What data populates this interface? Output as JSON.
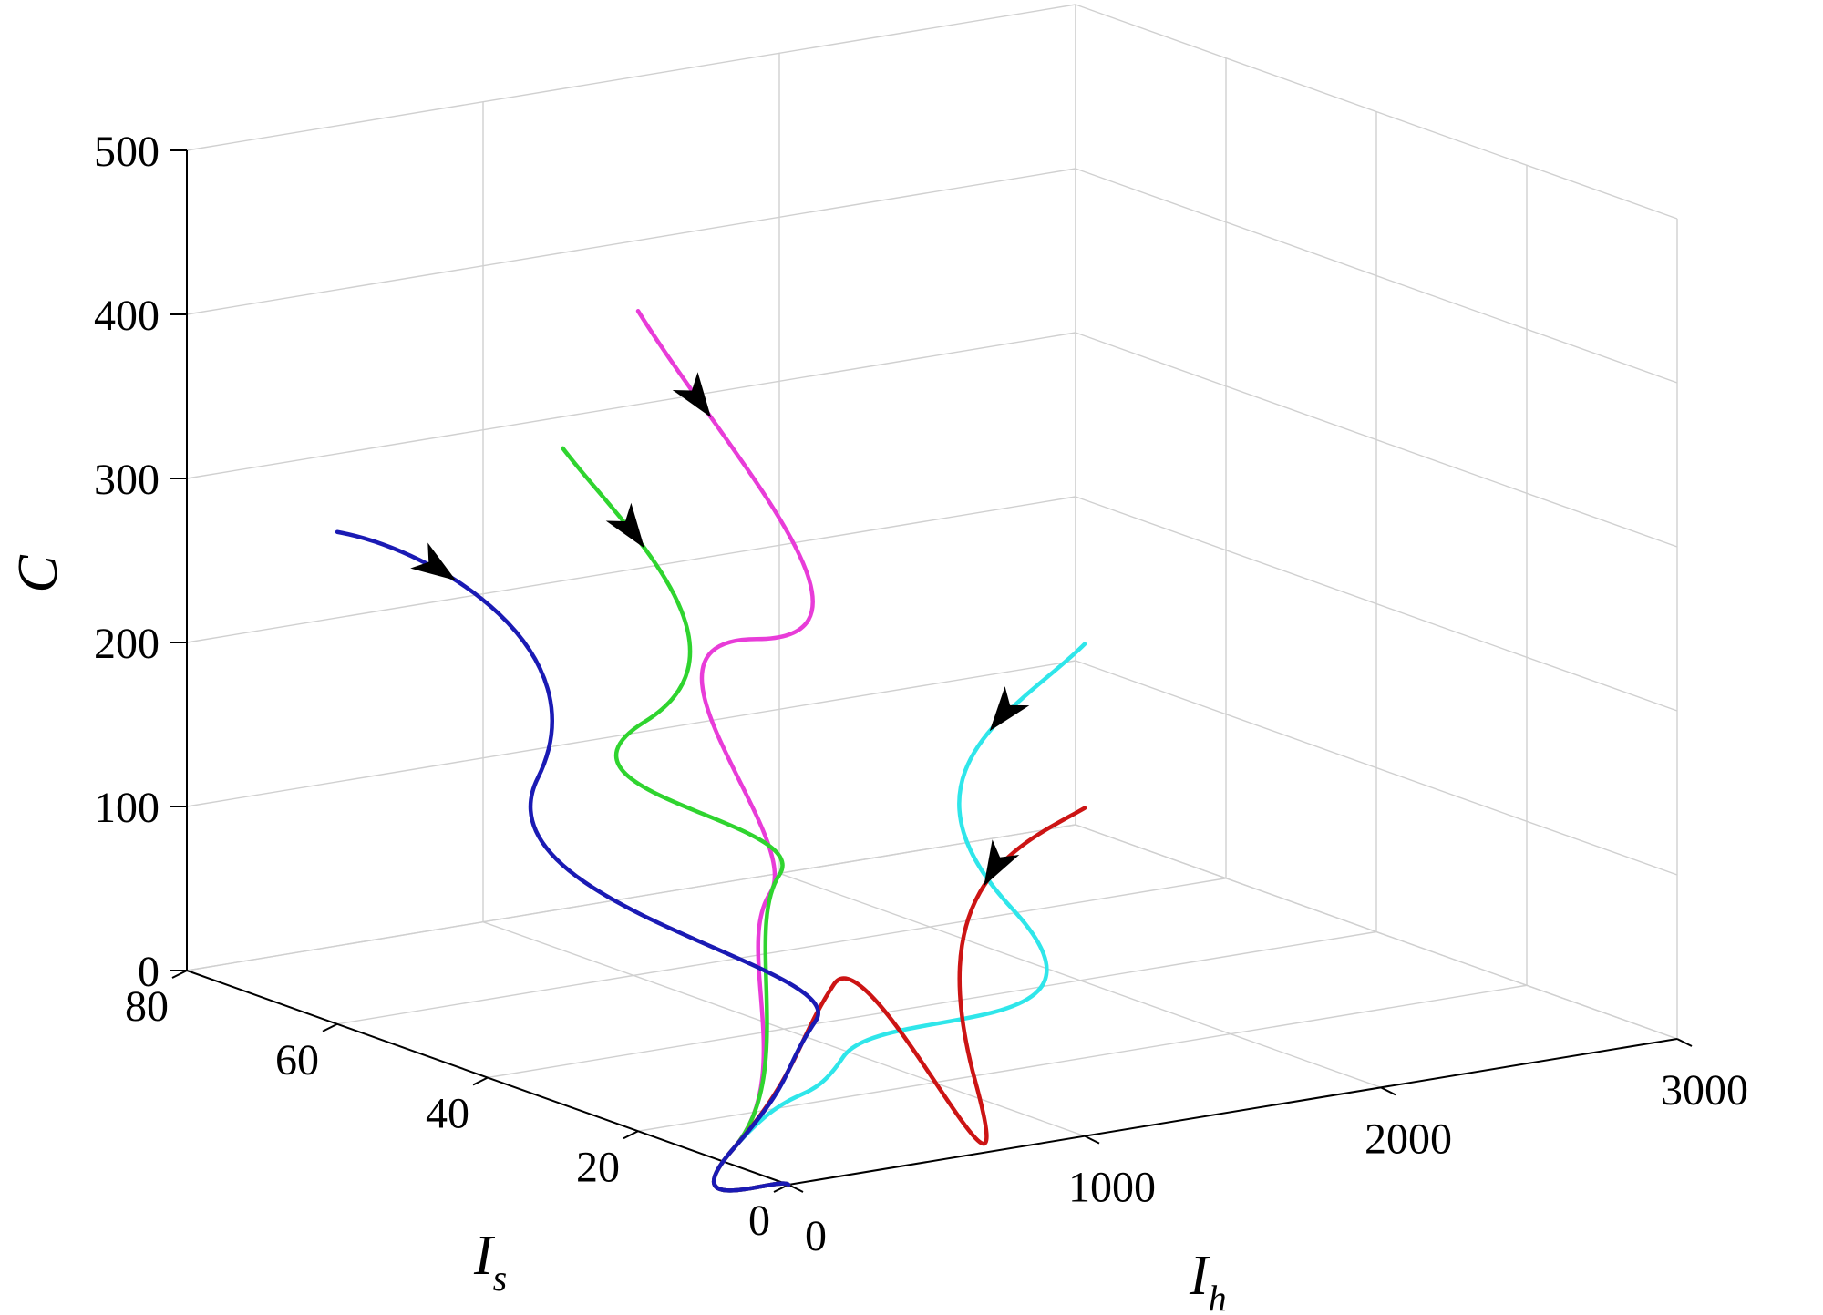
{
  "chart_data": {
    "type": "line3d",
    "title": "",
    "axes": {
      "x": {
        "label": "I",
        "label_sub": "h",
        "ticks": [
          "0",
          "1000",
          "2000",
          "3000"
        ],
        "range": [
          0,
          3000
        ]
      },
      "y": {
        "label": "I",
        "label_sub": "s",
        "ticks": [
          "0",
          "20",
          "40",
          "60",
          "80"
        ],
        "range": [
          0,
          80
        ]
      },
      "z": {
        "label": "C",
        "ticks": [
          "0",
          "100",
          "200",
          "300",
          "400",
          "500"
        ],
        "range": [
          0,
          500
        ]
      }
    },
    "grid": true,
    "colors": {
      "magenta": "#e83cd8",
      "green": "#2fd42f",
      "cyan": "#2fe6ea",
      "red": "#cc1414",
      "blue": "#1a1ab4"
    },
    "series": [
      {
        "color_key": "magenta",
        "start": {
          "Ih": 0,
          "Is": 20,
          "C": 500
        },
        "end": {
          "Ih": 0,
          "Is": 0,
          "C": 0
        }
      },
      {
        "color_key": "green",
        "start": {
          "Ih": 0,
          "Is": 30,
          "C": 400
        },
        "end": {
          "Ih": 0,
          "Is": 0,
          "C": 0
        }
      },
      {
        "color_key": "cyan",
        "start": {
          "Ih": 1000,
          "Is": 0,
          "C": 300
        },
        "end": {
          "Ih": 0,
          "Is": 0,
          "C": 0
        }
      },
      {
        "color_key": "red",
        "start": {
          "Ih": 1000,
          "Is": 0,
          "C": 200
        },
        "end": {
          "Ih": 0,
          "Is": 0,
          "C": 0
        }
      },
      {
        "color_key": "blue",
        "start": {
          "Ih": 0,
          "Is": 60,
          "C": 300
        },
        "end": {
          "Ih": 0,
          "Is": 0,
          "C": 0
        }
      }
    ]
  }
}
